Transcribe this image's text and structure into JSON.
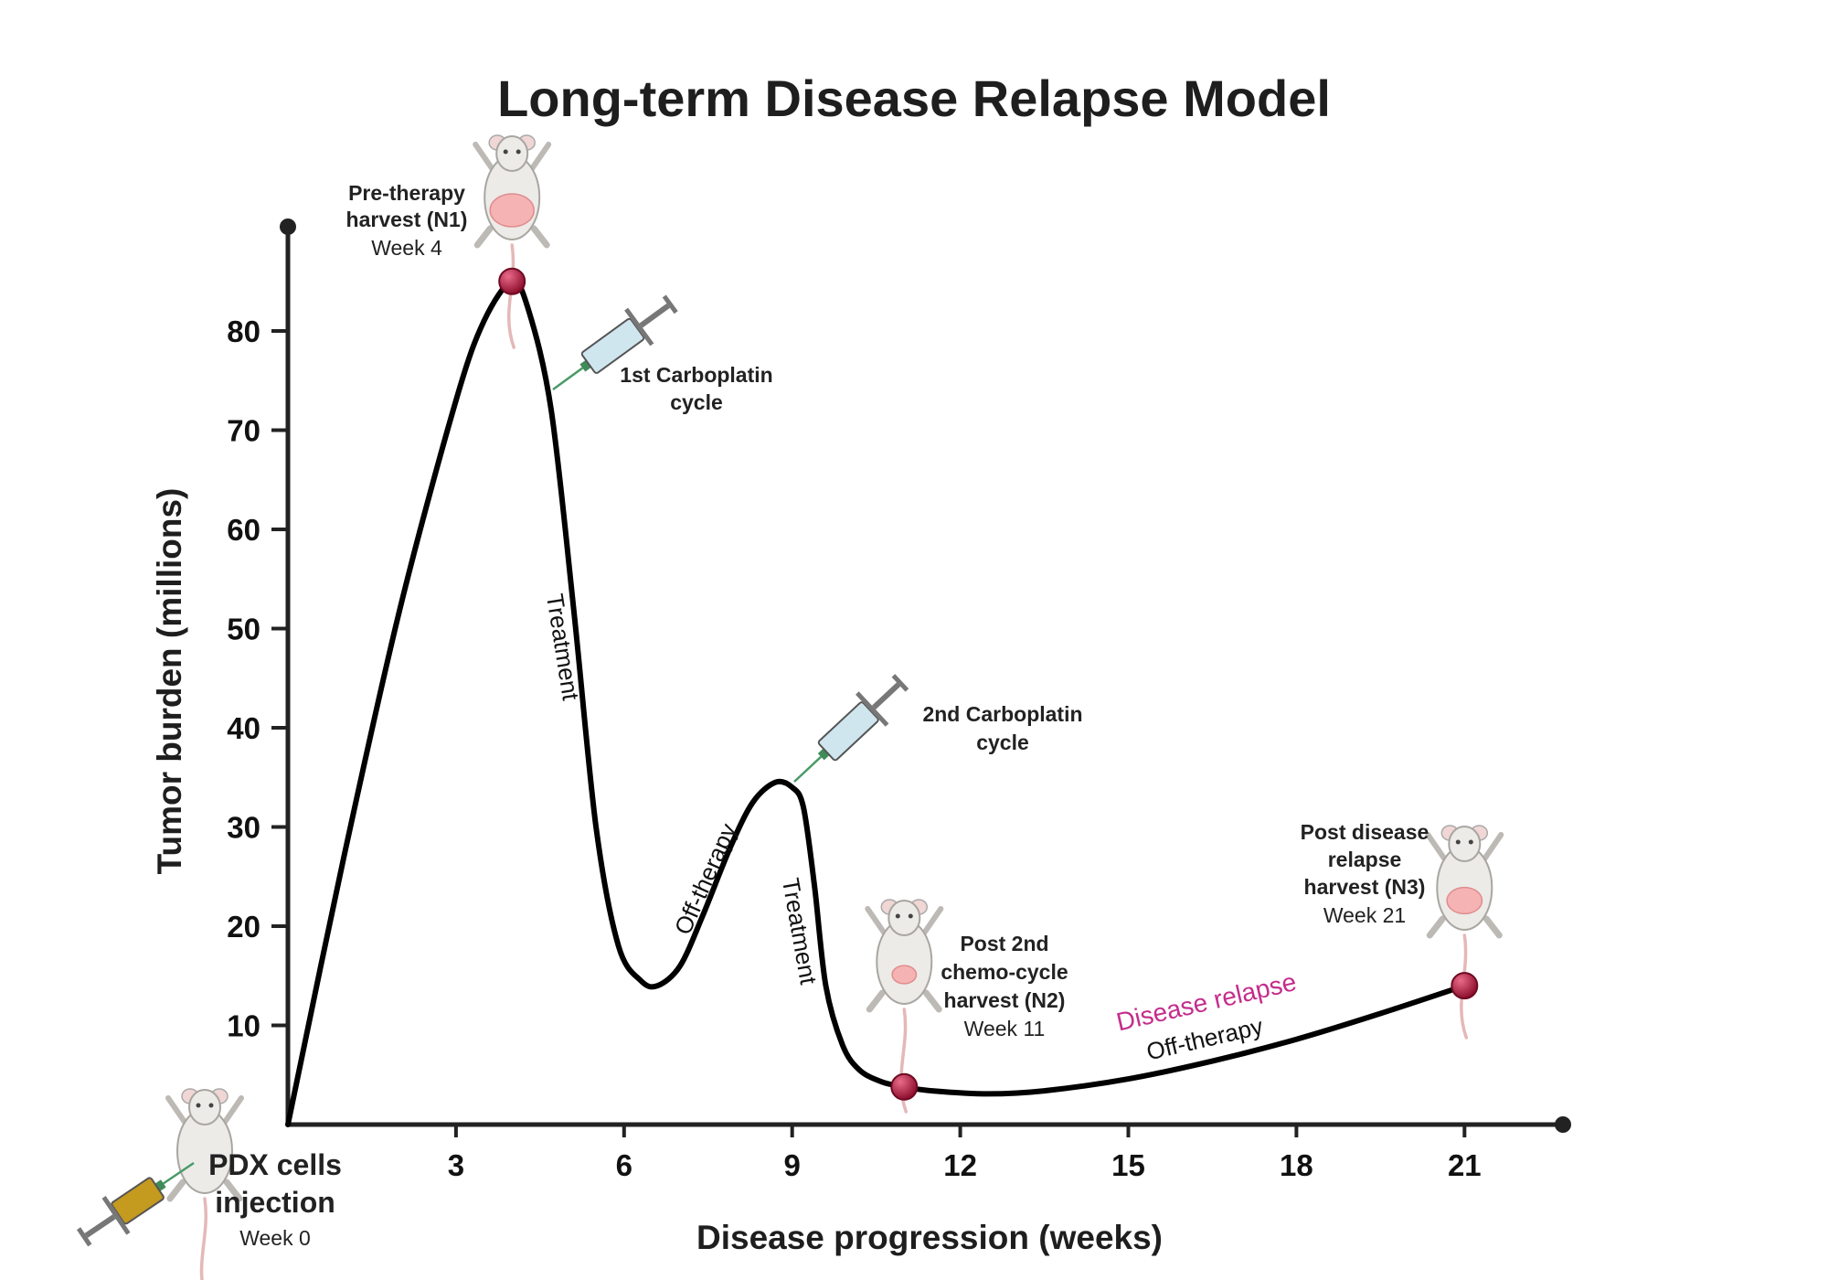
{
  "title": "Long-term Disease Relapse Model",
  "chart_data": {
    "type": "line",
    "title": "Long-term Disease Relapse Model",
    "xlabel": "Disease progression (weeks)",
    "ylabel": "Tumor burden (millions)",
    "xlim": [
      0,
      22.5
    ],
    "ylim": [
      0,
      90
    ],
    "x_ticks": [
      3,
      6,
      9,
      12,
      15,
      18,
      21
    ],
    "y_ticks": [
      10,
      20,
      30,
      40,
      50,
      60,
      70,
      80
    ],
    "grid": false,
    "series": [
      {
        "x": [
          0,
          1,
          2,
          3,
          3.5,
          4,
          4.3,
          4.7,
          5.1,
          5.5,
          5.9,
          6.3,
          6.6,
          7,
          7.4,
          7.9,
          8.3,
          8.7,
          9,
          9.2,
          9.4,
          9.6,
          9.9,
          10.2,
          10.6,
          11,
          11.5,
          12.5,
          13.5,
          15,
          16.5,
          18,
          19.5,
          21
        ],
        "y": [
          0,
          27,
          52,
          73,
          81,
          85,
          82,
          72,
          52,
          30,
          18,
          14.5,
          14,
          16,
          21,
          28,
          32.5,
          34.5,
          34,
          32,
          24,
          14,
          8,
          5.5,
          4.3,
          3.8,
          3.4,
          3.1,
          3.4,
          4.6,
          6.4,
          8.6,
          11.2,
          14
        ]
      }
    ],
    "markers": [
      {
        "x": 4,
        "y": 85
      },
      {
        "x": 11,
        "y": 3.8
      },
      {
        "x": 21,
        "y": 14
      }
    ],
    "curve_labels": [
      "Treatment",
      "Off-therapy",
      "Treatment",
      "Off-therapy"
    ],
    "relapse_label": "Disease relapse",
    "annotations": {
      "n1": {
        "line1": "Pre-therapy",
        "line2": "harvest (N1)",
        "week": "Week 4"
      },
      "n2": {
        "line1": "Post 2nd",
        "line2": "chemo-cycle",
        "line3": "harvest (N2)",
        "week": "Week 11"
      },
      "n3": {
        "line1": "Post disease",
        "line2": "relapse",
        "line3": "harvest (N3)",
        "week": "Week 21"
      },
      "carbo1": {
        "line1": "1st Carboplatin",
        "line2": "cycle"
      },
      "carbo2": {
        "line1": "2nd Carboplatin",
        "line2": "cycle"
      },
      "pdx": {
        "line1": "PDX cells",
        "line2": "injection",
        "week": "Week 0"
      }
    },
    "colors": {
      "curve": "#000000",
      "marker": "#b5173f",
      "relapse": "#c42d8c",
      "tumor": "#f6b3b3",
      "mouse": "#ecebe8",
      "syringe_fluid": "#cfe6ef",
      "pdx_fluid": "#c49a1f"
    }
  }
}
